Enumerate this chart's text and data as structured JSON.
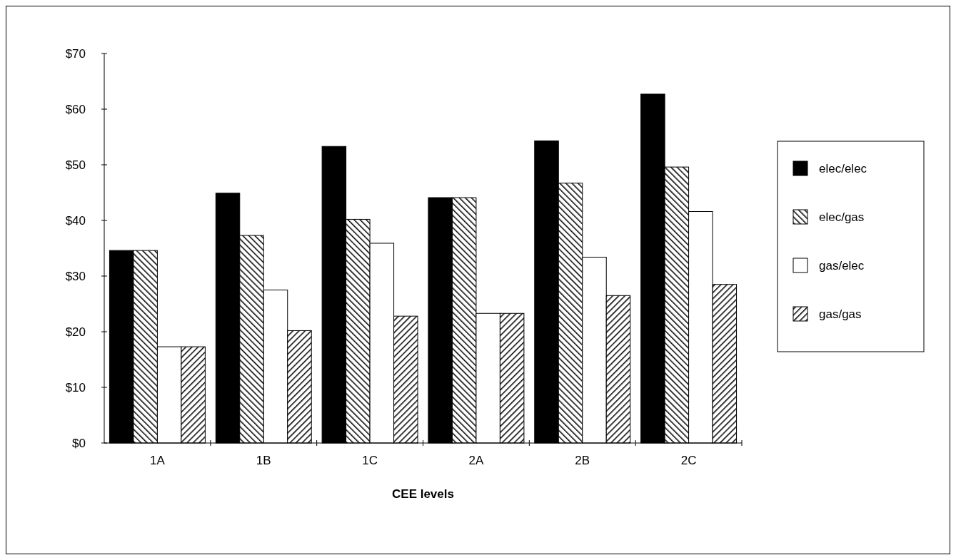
{
  "chart_data": {
    "type": "bar",
    "xlabel": "CEE levels",
    "categories": [
      "1A",
      "1B",
      "1C",
      "2A",
      "2B",
      "2C"
    ],
    "series": [
      {
        "name": "elec/elec",
        "color": "#000000",
        "values": [
          34.6,
          44.9,
          53.3,
          44.1,
          54.3,
          62.7
        ]
      },
      {
        "name": "elec/gas",
        "color": "#000000",
        "values": [
          34.6,
          37.3,
          40.2,
          44.1,
          46.7,
          49.6
        ]
      },
      {
        "name": "gas/elec",
        "color": "#ffffff",
        "values": [
          17.3,
          27.5,
          35.9,
          23.3,
          33.4,
          41.6
        ]
      },
      {
        "name": "gas/gas",
        "color": "#000000",
        "values": [
          17.3,
          20.2,
          22.8,
          23.3,
          26.5,
          28.5
        ]
      }
    ],
    "ylim": [
      0,
      70
    ],
    "yticks": [
      {
        "value": 0,
        "label": "$0"
      },
      {
        "value": 10,
        "label": "$10"
      },
      {
        "value": 20,
        "label": "$20"
      },
      {
        "value": 30,
        "label": "$30"
      },
      {
        "value": 40,
        "label": "$40"
      },
      {
        "value": 50,
        "label": "$50"
      },
      {
        "value": 60,
        "label": "$60"
      },
      {
        "value": 70,
        "label": "$70"
      }
    ],
    "grid": false,
    "legend": "right"
  }
}
